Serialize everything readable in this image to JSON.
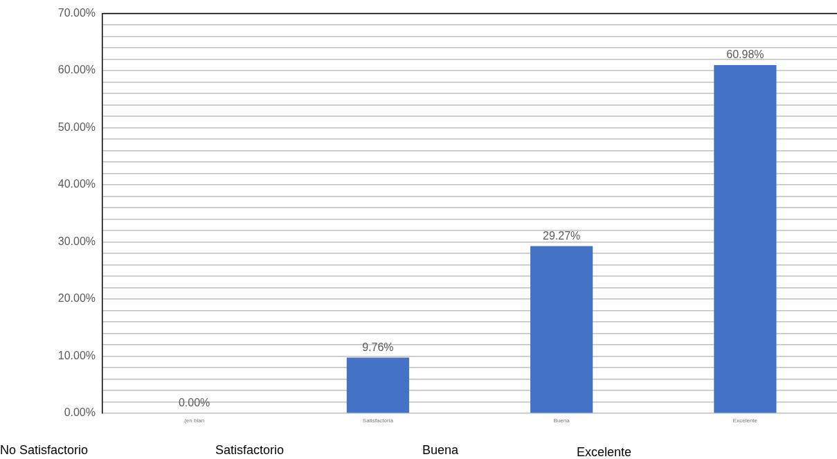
{
  "chart_data": {
    "type": "bar",
    "categories": [
      "(en blan",
      "Satisfactoria",
      "Buena",
      "Excelente"
    ],
    "values": [
      0,
      9.76,
      29.27,
      60.98
    ],
    "value_labels": [
      "0.00%",
      "9.76%",
      "29.27%",
      "60.98%"
    ],
    "color": "#4472c4",
    "ylim": [
      0,
      70
    ],
    "yticks": [
      {
        "value": 0,
        "label": "0.00%"
      },
      {
        "value": 2,
        "label": null
      },
      {
        "value": 4,
        "label": null
      },
      {
        "value": 6,
        "label": null
      },
      {
        "value": 8,
        "label": null
      },
      {
        "value": 10,
        "label": "10.00%"
      },
      {
        "value": 12,
        "label": null
      },
      {
        "value": 14,
        "label": null
      },
      {
        "value": 16,
        "label": null
      },
      {
        "value": 18,
        "label": null
      },
      {
        "value": 20,
        "label": "20.00%"
      },
      {
        "value": 22,
        "label": null
      },
      {
        "value": 24,
        "label": null
      },
      {
        "value": 26,
        "label": null
      },
      {
        "value": 28,
        "label": null
      },
      {
        "value": 30,
        "label": "30.00%"
      },
      {
        "value": 32,
        "label": null
      },
      {
        "value": 34,
        "label": null
      },
      {
        "value": 36,
        "label": null
      },
      {
        "value": 38,
        "label": null
      },
      {
        "value": 40,
        "label": "40.00%"
      },
      {
        "value": 42,
        "label": null
      },
      {
        "value": 44,
        "label": null
      },
      {
        "value": 46,
        "label": null
      },
      {
        "value": 48,
        "label": null
      },
      {
        "value": 50,
        "label": "50.00%"
      },
      {
        "value": 52,
        "label": null
      },
      {
        "value": 54,
        "label": null
      },
      {
        "value": 56,
        "label": null
      },
      {
        "value": 58,
        "label": null
      },
      {
        "value": 60,
        "label": "60.00%"
      },
      {
        "value": 62,
        "label": null
      },
      {
        "value": 64,
        "label": null
      },
      {
        "value": 66,
        "label": null
      },
      {
        "value": 68,
        "label": null
      },
      {
        "value": 70,
        "label": "70.00%"
      }
    ],
    "grid": "y",
    "legend": false,
    "annotations": [
      "No Satisfactorio",
      "Satisfactorio",
      "Buena",
      "Excelente"
    ]
  }
}
